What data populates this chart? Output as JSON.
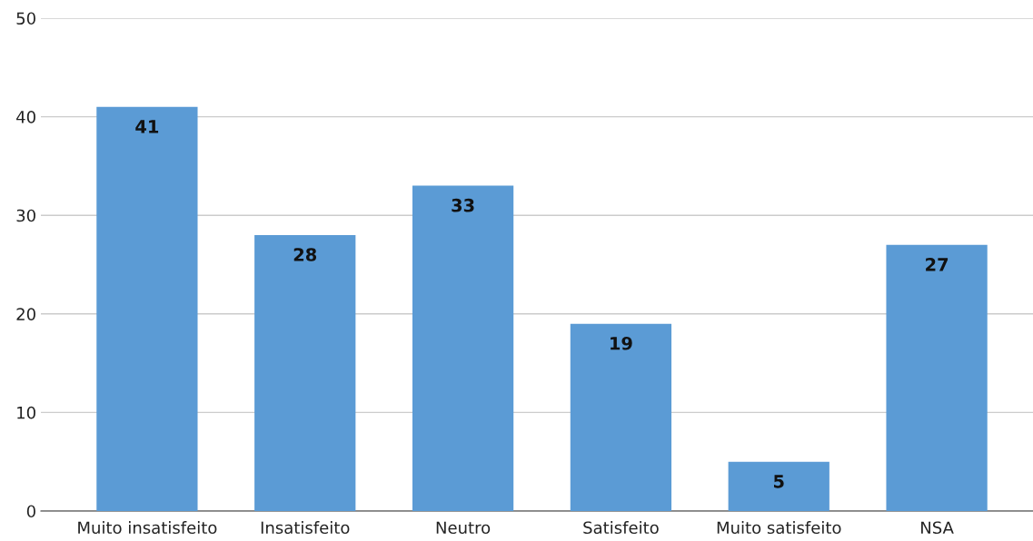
{
  "chart_data": {
    "type": "bar",
    "categories": [
      "Muito insatisfeito",
      "Insatisfeito",
      "Neutro",
      "Satisfeito",
      "Muito satisfeito",
      "NSA"
    ],
    "values": [
      41,
      28,
      33,
      19,
      5,
      27
    ],
    "color": "#5b9bd5",
    "ylim": [
      0,
      50
    ],
    "yticks": [
      0,
      10,
      20,
      30,
      40,
      50
    ],
    "grid": "y",
    "data_labels": true
  }
}
